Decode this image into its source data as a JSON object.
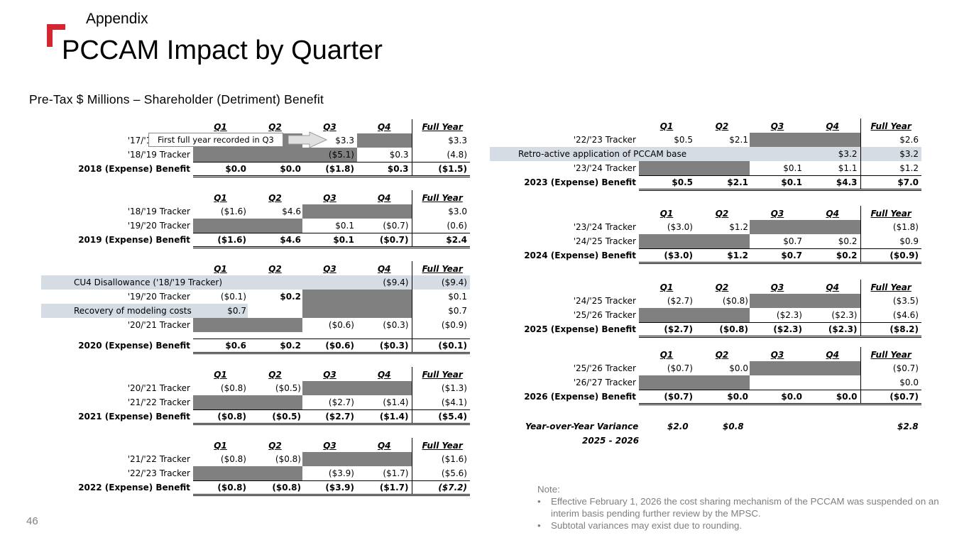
{
  "header": {
    "section": "Appendix",
    "title": "PCCAM Impact by Quarter",
    "subtitle": "Pre-Tax $ Millions – Shareholder (Detriment) Benefit",
    "page_number": "46"
  },
  "columns": [
    "Q1",
    "Q2",
    "Q3",
    "Q4",
    "Full Year"
  ],
  "callout": "First full year recorded in Q3",
  "tables": {
    "t2018": {
      "rows": [
        [
          "'17/'18 Tracker",
          "",
          "",
          "$3.3",
          "",
          "$3.3"
        ],
        [
          "'18/'19 Tracker",
          "",
          "",
          "($5.1)",
          "$0.3",
          "(4.8)"
        ],
        [
          "2018 (Expense) Benefit",
          "$0.0",
          "$0.0",
          "($1.8)",
          "$0.3",
          "($1.5)"
        ]
      ]
    },
    "t2019": {
      "rows": [
        [
          "'18/'19 Tracker",
          "($1.6)",
          "$4.6",
          "",
          "",
          "$3.0"
        ],
        [
          "'19/'20 Tracker",
          "",
          "",
          "$0.1",
          "($0.7)",
          "(0.6)"
        ],
        [
          "2019 (Expense) Benefit",
          "($1.6)",
          "$4.6",
          "$0.1",
          "($0.7)",
          "$2.4"
        ]
      ]
    },
    "t2020": {
      "rows": [
        [
          "CU4 Disallowance ('18/'19 Tracker)",
          "",
          "",
          "",
          "($9.4)",
          "($9.4)"
        ],
        [
          "'19/'20 Tracker",
          "($0.1)",
          "$0.2",
          "",
          "",
          "$0.1"
        ],
        [
          "Recovery of modeling costs",
          "$0.7",
          "",
          "",
          "",
          "$0.7"
        ],
        [
          "'20/'21 Tracker",
          "",
          "",
          "($0.6)",
          "($0.3)",
          "($0.9)"
        ],
        [
          "2020 (Expense) Benefit",
          "$0.6",
          "$0.2",
          "($0.6)",
          "($0.3)",
          "($0.1)"
        ]
      ]
    },
    "t2021": {
      "rows": [
        [
          "'20/'21 Tracker",
          "($0.8)",
          "($0.5)",
          "",
          "",
          "($1.3)"
        ],
        [
          "'21/'22 Tracker",
          "",
          "",
          "($2.7)",
          "($1.4)",
          "($4.1)"
        ],
        [
          "2021 (Expense) Benefit",
          "($0.8)",
          "($0.5)",
          "($2.7)",
          "($1.4)",
          "($5.4)"
        ]
      ]
    },
    "t2022": {
      "rows": [
        [
          "'21/'22 Tracker",
          "($0.8)",
          "($0.8)",
          "",
          "",
          "($1.6)"
        ],
        [
          "'22/'23 Tracker",
          "",
          "",
          "($3.9)",
          "($1.7)",
          "($5.6)"
        ],
        [
          "2022 (Expense) Benefit",
          "($0.8)",
          "($0.8)",
          "($3.9)",
          "($1.7)",
          "($7.2)"
        ]
      ]
    },
    "t2023": {
      "rows": [
        [
          "'22/'23 Tracker",
          "$0.5",
          "$2.1",
          "",
          "",
          "$2.6"
        ],
        [
          "Retro-active application of PCCAM base",
          "",
          "",
          "",
          "$3.2",
          "$3.2"
        ],
        [
          "'23/'24 Tracker",
          "",
          "",
          "$0.1",
          "$1.1",
          "$1.2"
        ],
        [
          "2023 (Expense) Benefit",
          "$0.5",
          "$2.1",
          "$0.1",
          "$4.3",
          "$7.0"
        ]
      ]
    },
    "t2024": {
      "rows": [
        [
          "'23/'24 Tracker",
          "($3.0)",
          "$1.2",
          "",
          "",
          "($1.8)"
        ],
        [
          "'24/'25 Tracker",
          "",
          "",
          "$0.7",
          "$0.2",
          "$0.9"
        ],
        [
          "2024 (Expense) Benefit",
          "($3.0)",
          "$1.2",
          "$0.7",
          "$0.2",
          "($0.9)"
        ]
      ]
    },
    "t2025": {
      "rows": [
        [
          "'24/'25 Tracker",
          "($2.7)",
          "($0.8)",
          "",
          "",
          "($3.5)"
        ],
        [
          "'25/'26 Tracker",
          "",
          "",
          "($2.3)",
          "($2.3)",
          "($4.6)"
        ],
        [
          "2025 (Expense) Benefit",
          "($2.7)",
          "($0.8)",
          "($2.3)",
          "($2.3)",
          "($8.2)"
        ]
      ]
    },
    "t2026": {
      "rows": [
        [
          "'25/'26 Tracker",
          "($0.7)",
          "$0.0",
          "",
          "",
          "($0.7)"
        ],
        [
          "'26/'27 Tracker",
          "",
          "",
          "",
          "",
          "$0.0"
        ],
        [
          "2026 (Expense) Benefit",
          "($0.7)",
          "$0.0",
          "$0.0",
          "$0.0",
          "($0.7)"
        ]
      ]
    }
  },
  "yoy": {
    "label_line1": "Year-over-Year Variance",
    "label_line2": "2025 - 2026",
    "q1": "$2.0",
    "q2": "$0.8",
    "full_year": "$2.8"
  },
  "notes": {
    "heading": "Note:",
    "items": [
      "Effective February 1, 2026 the cost sharing mechanism of the PCCAM was suspended on an interim basis pending further review by the MPSC.",
      "Subtotal variances may exist due to rounding."
    ]
  }
}
